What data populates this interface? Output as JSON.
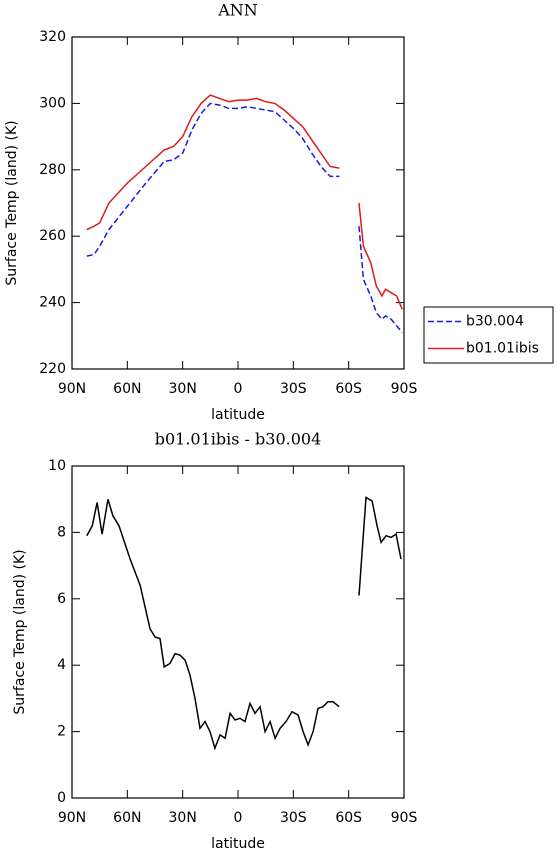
{
  "chart_data": [
    {
      "type": "line",
      "title": "ANN",
      "xlabel": "latitude",
      "ylabel": "Surface Temp (land) (K)",
      "x": [
        82,
        78,
        75,
        70,
        60,
        50,
        40,
        35,
        30,
        25,
        20,
        15,
        10,
        5,
        0,
        -5,
        -10,
        -15,
        -20,
        -25,
        -30,
        -35,
        -40,
        -45,
        -50,
        -55,
        -60,
        -65.6,
        -68,
        -72,
        -75,
        -78,
        -80,
        -83,
        -86,
        -89
      ],
      "series": [
        {
          "name": "b30.004",
          "color": "#1a1ae0",
          "line_style": "dashed",
          "values": [
            254,
            254.5,
            257,
            262,
            269,
            276,
            282.5,
            283,
            285,
            292,
            297,
            300,
            299.5,
            298.5,
            298.5,
            299,
            298.5,
            298,
            297.5,
            295,
            292.5,
            289.5,
            285,
            281,
            278,
            278,
            null,
            263,
            247,
            242,
            237,
            235,
            236,
            235,
            233,
            231
          ]
        },
        {
          "name": "b01.01ibis",
          "color": "#e01a1a",
          "line_style": "solid",
          "values": [
            262,
            263,
            264,
            270,
            276,
            281,
            286,
            287,
            290,
            296,
            300,
            302.5,
            301.5,
            300.5,
            301,
            301,
            301.5,
            300.5,
            300,
            298,
            295.5,
            293,
            289,
            285,
            281,
            280.5,
            null,
            270,
            257,
            252,
            245,
            242,
            244,
            243,
            242,
            238
          ]
        }
      ],
      "xlim": [
        90,
        -90
      ],
      "xticks": [
        {
          "value": 90,
          "label": "90N"
        },
        {
          "value": 60,
          "label": "60N"
        },
        {
          "value": 30,
          "label": "30N"
        },
        0,
        {
          "value": -30,
          "label": "30S"
        },
        {
          "value": -60,
          "label": "60S"
        },
        {
          "value": -90,
          "label": "90S"
        }
      ],
      "ylim": [
        220,
        320
      ],
      "yticks": [
        220,
        240,
        260,
        280,
        300,
        320
      ],
      "legend": "right"
    },
    {
      "type": "line",
      "title": "b01.01ibis - b30.004",
      "xlabel": "latitude",
      "ylabel": "Surface Temp (land) (K)",
      "x": [
        82,
        79,
        76.4,
        73.7,
        70.5,
        67.8,
        64.5,
        58.5,
        53,
        47.7,
        45,
        42.3,
        40,
        36.9,
        34.1,
        31.4,
        28.7,
        26,
        23.3,
        20.6,
        17.9,
        15.2,
        12.5,
        9.7,
        7,
        4.3,
        1.6,
        -1.1,
        -3.8,
        -6.5,
        -9.2,
        -12,
        -14.7,
        -17.4,
        -20.1,
        -22.8,
        -26,
        -29.3,
        -32.6,
        -35.3,
        -38,
        -40.7,
        -43.4,
        -46.1,
        -48.8,
        -51.5,
        -54.8,
        -60,
        -65.6,
        -69.4,
        -72.7,
        -75.4,
        -77.6,
        -80.3,
        -83,
        -85.7,
        -88.4
      ],
      "series": [
        {
          "name": "b01.01ibis - b30.004",
          "color": "#000000",
          "line_style": "solid",
          "values": [
            7.9,
            8.2,
            8.9,
            7.95,
            9.0,
            8.5,
            8.2,
            7.2,
            6.4,
            5.1,
            4.85,
            4.8,
            3.95,
            4.05,
            4.35,
            4.3,
            4.15,
            3.7,
            3.0,
            2.1,
            2.3,
            2.0,
            1.5,
            1.9,
            1.8,
            2.55,
            2.35,
            2.4,
            2.3,
            2.85,
            2.55,
            2.75,
            2.0,
            2.3,
            1.8,
            2.1,
            2.3,
            2.6,
            2.5,
            2.0,
            1.6,
            2.0,
            2.7,
            2.75,
            2.9,
            2.9,
            2.75,
            null,
            6.1,
            9.05,
            8.95,
            8.2,
            7.7,
            7.9,
            7.85,
            7.95,
            7.2
          ]
        }
      ],
      "xlim": [
        90,
        -90
      ],
      "xticks": [
        {
          "value": 90,
          "label": "90N"
        },
        {
          "value": 60,
          "label": "60N"
        },
        {
          "value": 30,
          "label": "30N"
        },
        0,
        {
          "value": -30,
          "label": "30S"
        },
        {
          "value": -60,
          "label": "60S"
        },
        {
          "value": -90,
          "label": "90S"
        }
      ],
      "ylim": [
        0,
        10
      ],
      "yticks": [
        0,
        2,
        4,
        6,
        8,
        10
      ]
    }
  ]
}
